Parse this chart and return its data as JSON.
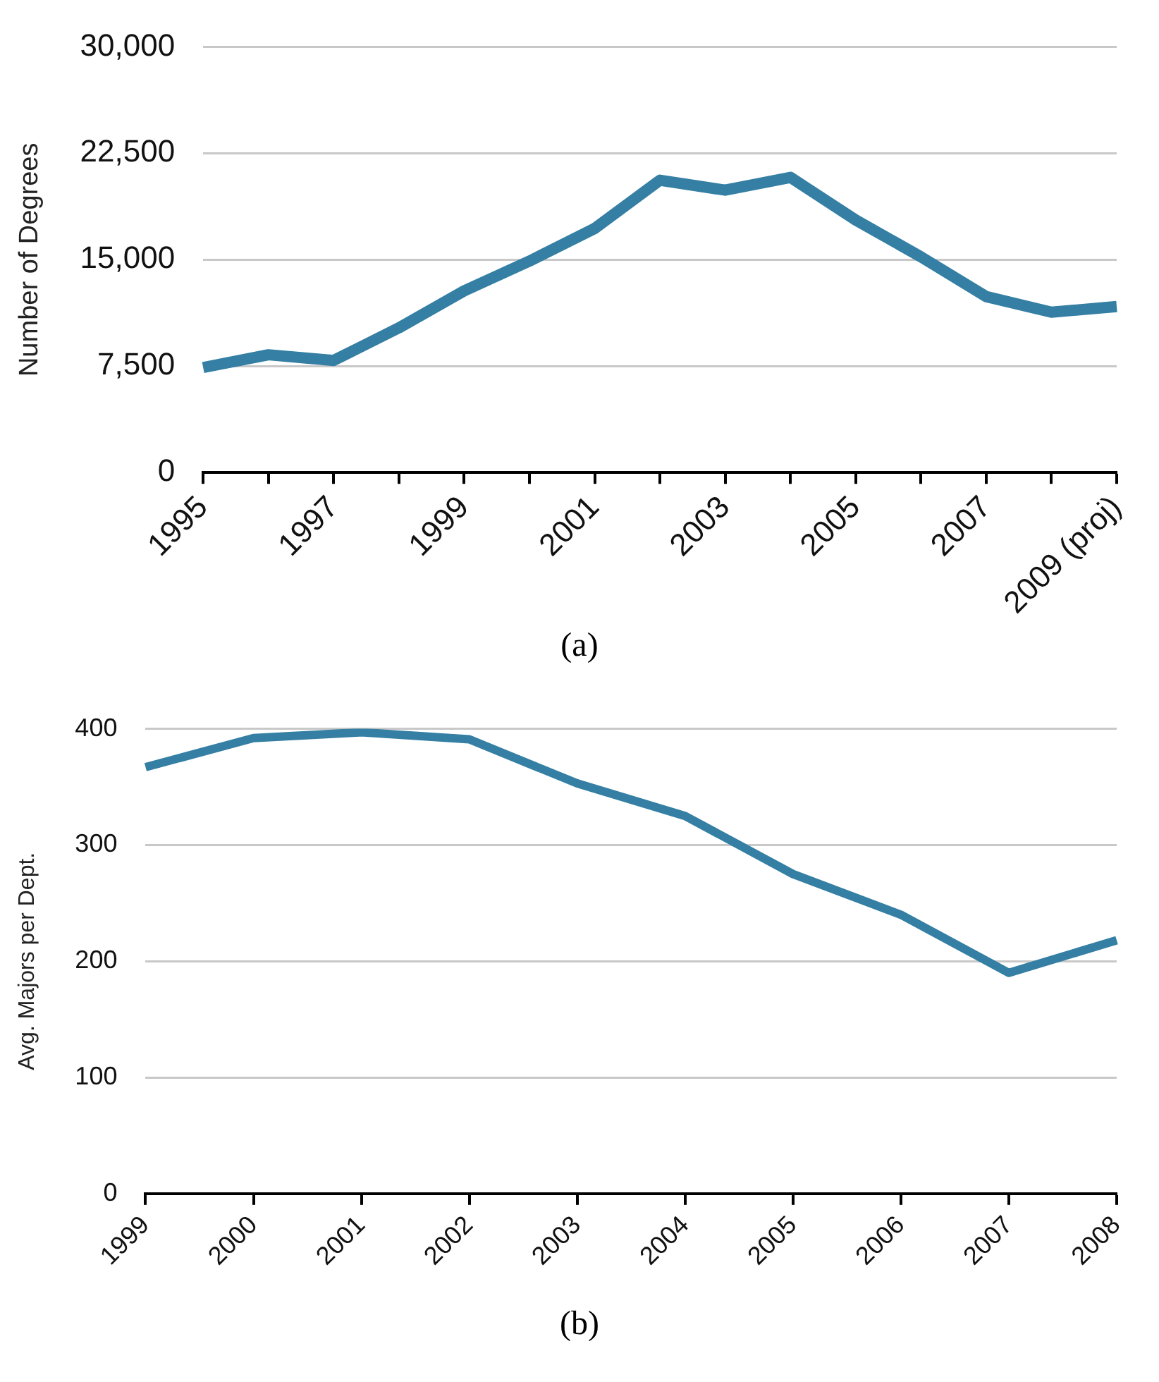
{
  "chart_data": [
    {
      "type": "line",
      "ylabel": "Number of Degrees",
      "annotations": [
        "(a)"
      ],
      "categories": [
        "1995",
        null,
        "1997",
        null,
        "1999",
        null,
        "2001",
        null,
        "2003",
        null,
        "2005",
        null,
        "2007",
        null,
        "2009 (proj)"
      ],
      "series": [
        {
          "color": "#347fa3",
          "values": [
            7400,
            8300,
            7900,
            10200,
            12800,
            14900,
            17200,
            20600,
            19900,
            20800,
            17800,
            15200,
            12400,
            11300,
            11700
          ]
        }
      ],
      "ylim": [
        0,
        30000
      ],
      "yticks": [
        0,
        {
          "value": 7500,
          "label": "7,500"
        },
        {
          "value": 15000,
          "label": "15,000"
        },
        {
          "value": 22500,
          "label": "22,500"
        },
        {
          "value": 30000,
          "label": "30,000"
        }
      ],
      "grid": "y",
      "legend": false,
      "marker": "none",
      "line_style": "solid"
    },
    {
      "type": "line",
      "ylabel": "Avg. Majors per Dept.",
      "annotations": [
        "(b)"
      ],
      "categories": [
        "1999",
        "2000",
        "2001",
        "2002",
        "2003",
        "2004",
        "2005",
        "2006",
        "2007",
        "2008"
      ],
      "series": [
        {
          "color": "#347fa3",
          "values": [
            367,
            392,
            397,
            391,
            353,
            325,
            275,
            240,
            190,
            218
          ]
        }
      ],
      "ylim": [
        0,
        400
      ],
      "yticks": [
        0,
        100,
        200,
        300,
        400
      ],
      "grid": "y",
      "legend": false,
      "marker": "none",
      "line_style": "solid"
    }
  ]
}
